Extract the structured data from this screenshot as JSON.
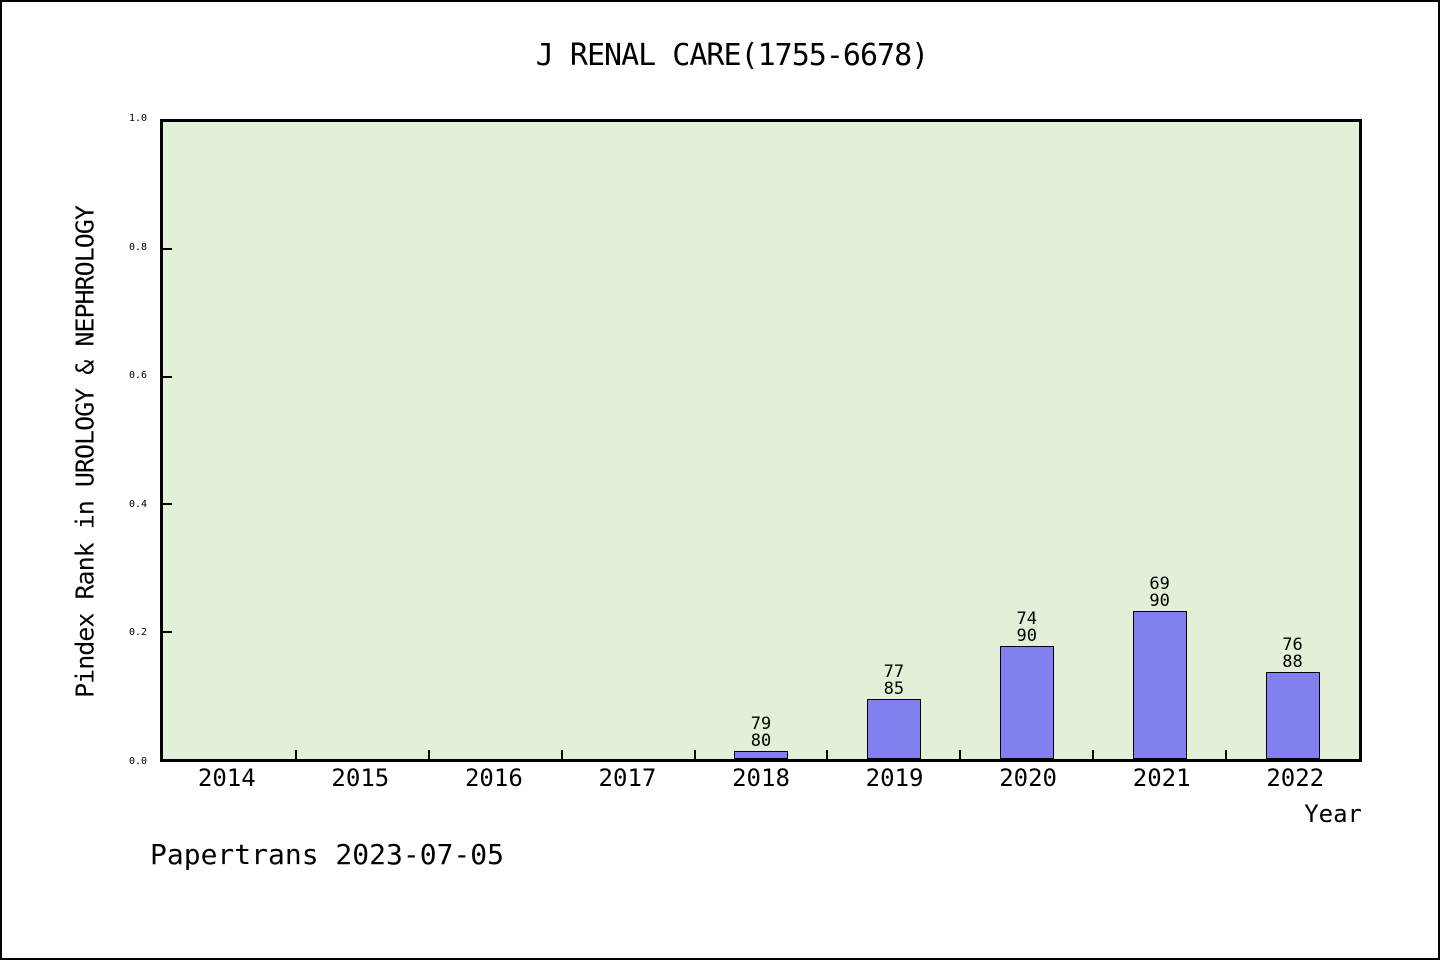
{
  "chart_data": {
    "type": "bar",
    "title": "J RENAL CARE(1755-6678)",
    "xlabel": "Year",
    "ylabel": "Pindex Rank in UROLOGY & NEPHROLOGY",
    "categories": [
      "2014",
      "2015",
      "2016",
      "2017",
      "2018",
      "2019",
      "2020",
      "2021",
      "2022"
    ],
    "ylim": [
      0.0,
      1.0
    ],
    "yticks": [
      "0.0",
      "0.2",
      "0.4",
      "0.6",
      "0.8",
      "1.0"
    ],
    "grid": false,
    "legend_position": "none",
    "bars": [
      {
        "year": "2018",
        "label_line1": "79",
        "label_line2": "80",
        "value": 0.0125
      },
      {
        "year": "2019",
        "label_line1": "77",
        "label_line2": "85",
        "value": 0.094
      },
      {
        "year": "2020",
        "label_line1": "74",
        "label_line2": "90",
        "value": 0.178
      },
      {
        "year": "2021",
        "label_line1": "69",
        "label_line2": "90",
        "value": 0.233
      },
      {
        "year": "2022",
        "label_line1": "76",
        "label_line2": "88",
        "value": 0.136
      }
    ],
    "colors": {
      "bar_fill": "#8180ee",
      "bar_edge": "#000000",
      "plot_background": "#e2f0d8",
      "axis": "#000000",
      "text": "#000000",
      "page_background": "#ffffff"
    }
  },
  "footer": {
    "text": "Papertrans 2023-07-05"
  }
}
